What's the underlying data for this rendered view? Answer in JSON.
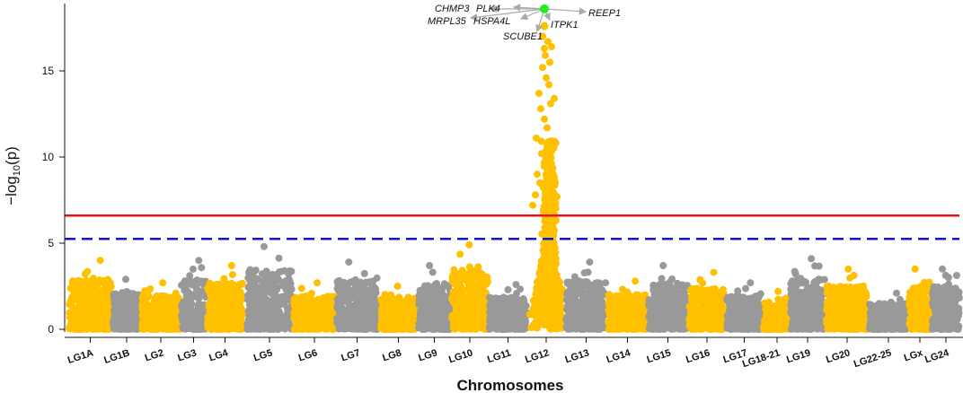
{
  "chart_data": {
    "type": "scatter",
    "subtype": "manhattan",
    "xlabel": "Chromosomes",
    "ylabel_prefix": "−log",
    "ylabel_sub": "10",
    "ylabel_suffix": "(p)",
    "ylim": [
      0,
      19
    ],
    "yticks": [
      0,
      5,
      10,
      15
    ],
    "colors": {
      "odd": "#FFC000",
      "even": "#999999",
      "lead_snp": "#22EE22",
      "arrows": "#AAAAAA"
    },
    "thresholds": [
      {
        "name": "genome-wide significance",
        "value": 6.6,
        "color": "#EE1111",
        "style": "solid"
      },
      {
        "name": "suggestive",
        "value": 5.25,
        "color": "#1111DD",
        "style": "dashed"
      }
    ],
    "chromosomes": [
      {
        "label": "LG1A",
        "max": 4.0,
        "color": "odd"
      },
      {
        "label": "LG1B",
        "max": 2.9,
        "color": "even"
      },
      {
        "label": "LG2",
        "max": 2.7,
        "color": "odd"
      },
      {
        "label": "LG3",
        "max": 4.0,
        "color": "even"
      },
      {
        "label": "LG4",
        "max": 3.7,
        "color": "odd"
      },
      {
        "label": "LG5",
        "max": 4.8,
        "color": "even"
      },
      {
        "label": "LG6",
        "max": 2.7,
        "color": "odd"
      },
      {
        "label": "LG7",
        "max": 3.9,
        "color": "even"
      },
      {
        "label": "LG8",
        "max": 2.5,
        "color": "odd"
      },
      {
        "label": "LG9",
        "max": 3.7,
        "color": "even"
      },
      {
        "label": "LG10",
        "max": 4.9,
        "color": "odd"
      },
      {
        "label": "LG11",
        "max": 2.6,
        "color": "even"
      },
      {
        "label": "LG12",
        "max": 18.6,
        "color": "odd"
      },
      {
        "label": "LG13",
        "max": 3.9,
        "color": "even"
      },
      {
        "label": "LG14",
        "max": 2.8,
        "color": "odd"
      },
      {
        "label": "LG15",
        "max": 3.7,
        "color": "even"
      },
      {
        "label": "LG16",
        "max": 3.3,
        "color": "odd"
      },
      {
        "label": "LG17",
        "max": 2.7,
        "color": "even"
      },
      {
        "label": "LG18-21",
        "max": 2.2,
        "color": "odd"
      },
      {
        "label": "LG19",
        "max": 4.1,
        "color": "even"
      },
      {
        "label": "LG20",
        "max": 3.5,
        "color": "odd"
      },
      {
        "label": "LG22-25",
        "max": 2.1,
        "color": "even"
      },
      {
        "label": "LGx",
        "max": 3.5,
        "color": "odd"
      },
      {
        "label": "LG24",
        "max": 3.5,
        "color": "even"
      }
    ],
    "annotations": {
      "chromosome": "LG12",
      "lead_value": 18.6,
      "genes": [
        "CHMP3",
        "PLK4",
        "MRPL35",
        "HSPA4L",
        "REEP1",
        "ITPK1",
        "SCUBE1"
      ]
    }
  }
}
